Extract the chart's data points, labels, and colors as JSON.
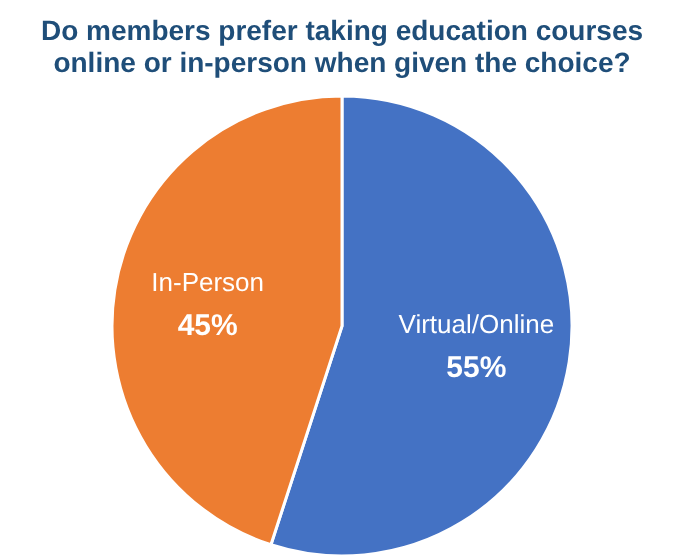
{
  "chart_data": {
    "type": "pie",
    "title": "Do members prefer taking education courses\nonline or in-person when given the choice?",
    "categories": [
      "Virtual/Online",
      "In-Person"
    ],
    "values": [
      55,
      45
    ],
    "colors": [
      "#4472c4",
      "#ed7d31"
    ],
    "value_labels": [
      "55%",
      "45%"
    ],
    "legend": false
  }
}
